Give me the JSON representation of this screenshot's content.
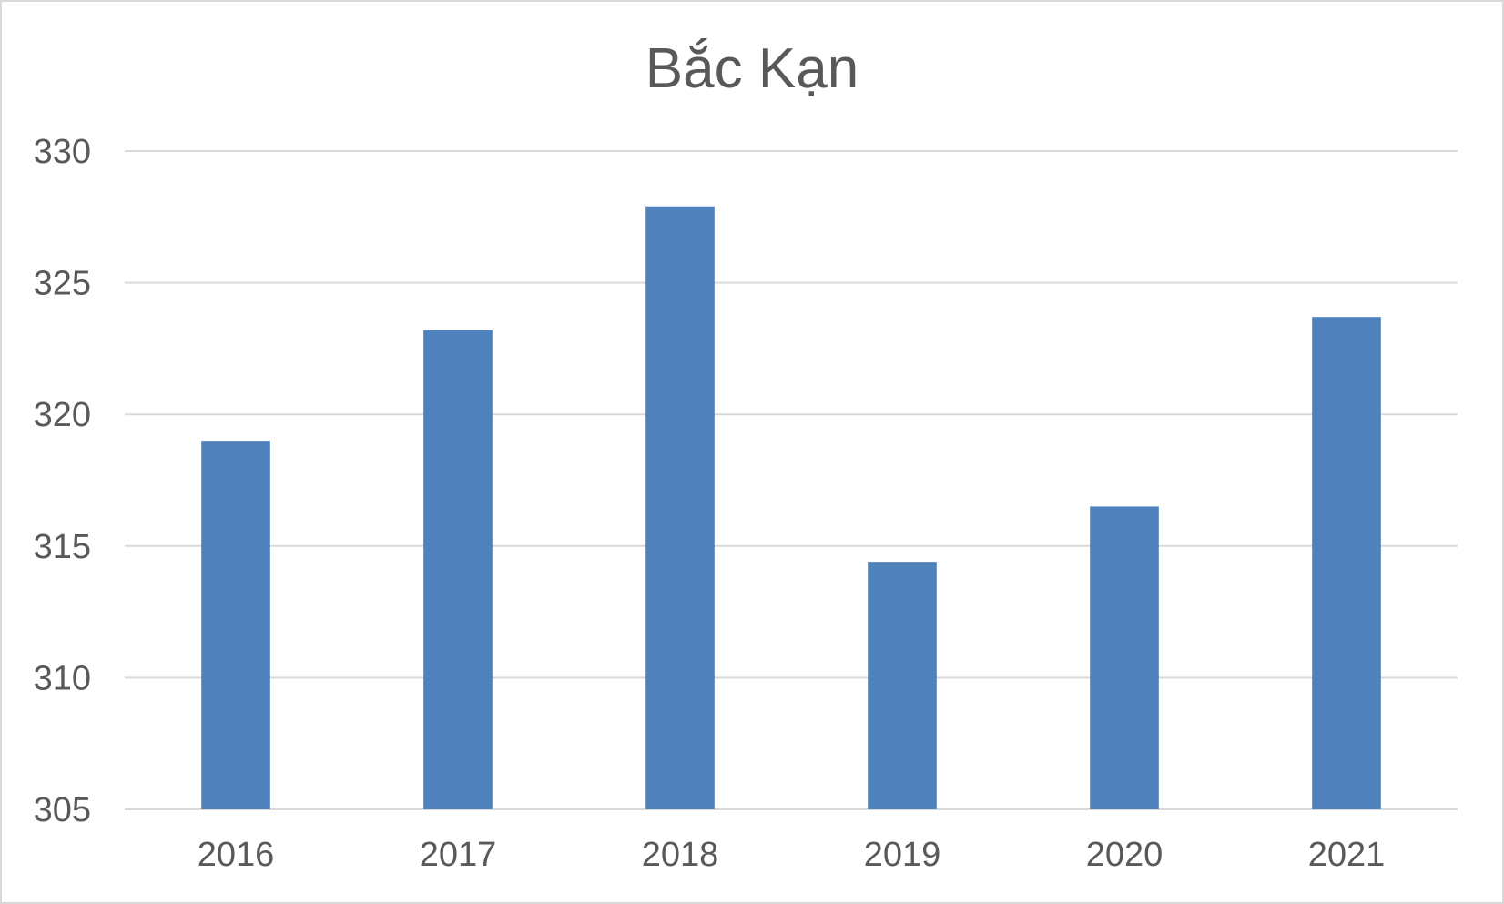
{
  "chart_data": {
    "type": "bar",
    "title": "Bắc Kạn",
    "xlabel": "",
    "ylabel": "",
    "categories": [
      "2016",
      "2017",
      "2018",
      "2019",
      "2020",
      "2021"
    ],
    "values": [
      319.0,
      323.2,
      327.9,
      314.4,
      316.5,
      323.7
    ],
    "ylim": [
      305,
      330
    ],
    "yticks": [
      305,
      310,
      315,
      320,
      325,
      330
    ],
    "ytick_labels": [
      "305",
      "310",
      "315",
      "320",
      "325",
      "330"
    ],
    "grid": true,
    "legend": "none",
    "bar_color": "#4f81bd"
  }
}
